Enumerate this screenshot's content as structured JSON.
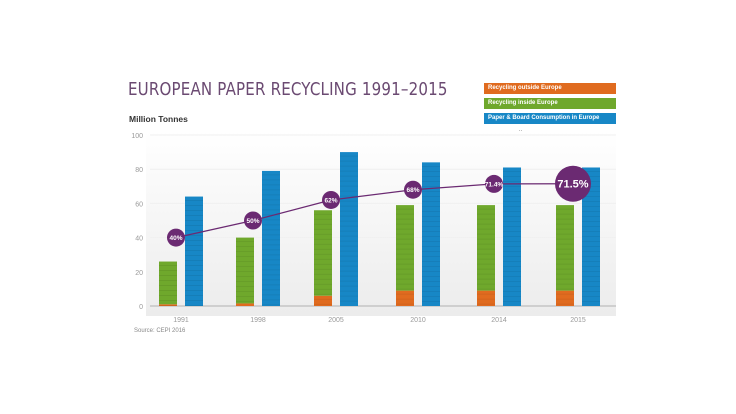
{
  "chart_data": {
    "type": "bar",
    "title": "EUROPEAN PAPER RECYCLING 1991–2015",
    "ylabel": "Million Tonnes",
    "xlabel": "",
    "ylim": [
      0,
      100
    ],
    "yticks": [
      0,
      20,
      40,
      60,
      80,
      100
    ],
    "grid": true,
    "legend_position": "top-right",
    "categories": [
      "1991",
      "1998",
      "2005",
      "2010",
      "2014",
      "2015"
    ],
    "series": [
      {
        "name": "Recycling outside Europe",
        "color": "#e06b1f",
        "values": [
          1,
          1.5,
          6,
          9,
          9,
          9
        ],
        "stack": "recycling"
      },
      {
        "name": "Recycling inside Europe",
        "color": "#6fa82c",
        "values": [
          25,
          38.5,
          50,
          50,
          50,
          50
        ],
        "stack": "recycling"
      },
      {
        "name": "Paper & Board Consumption in Europe",
        "color": "#1787c6",
        "values": [
          64,
          79,
          90,
          84,
          81,
          81
        ],
        "stack": "consumption"
      }
    ],
    "line_series": {
      "name": "Recycling Rate",
      "color": "#6b2a72",
      "values": [
        40,
        50,
        62,
        68,
        71.4,
        71.5
      ],
      "labels": [
        "40%",
        "50%",
        "62%",
        "68%",
        "71.4%",
        "71.5%"
      ]
    },
    "source": "Source: CEPI 2016"
  }
}
